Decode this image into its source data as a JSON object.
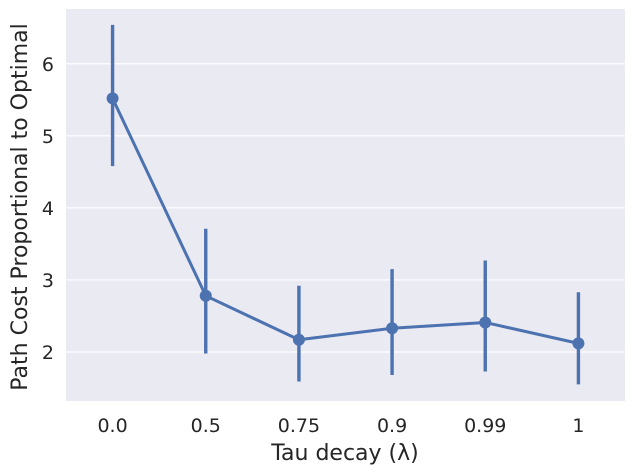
{
  "chart_data": {
    "type": "line",
    "xlabel": "Tau decay (λ)",
    "ylabel": "Path Cost Proportional to Optimal",
    "categories": [
      "0.0",
      "0.5",
      "0.75",
      "0.9",
      "0.99",
      "1"
    ],
    "series": [
      {
        "values": [
          5.52,
          2.78,
          2.17,
          2.33,
          2.41,
          2.12
        ],
        "ci_low": [
          4.58,
          1.98,
          1.59,
          1.68,
          1.73,
          1.55
        ],
        "ci_high": [
          6.54,
          3.71,
          2.92,
          3.15,
          3.27,
          2.83
        ],
        "color": "#4C72B0"
      }
    ],
    "yticks": [
      "2",
      "3",
      "4",
      "5",
      "6"
    ],
    "ylim": [
      1.32,
      6.76
    ],
    "grid": true,
    "background": "#EAEAF2",
    "grid_color": "#FFFFFF"
  }
}
